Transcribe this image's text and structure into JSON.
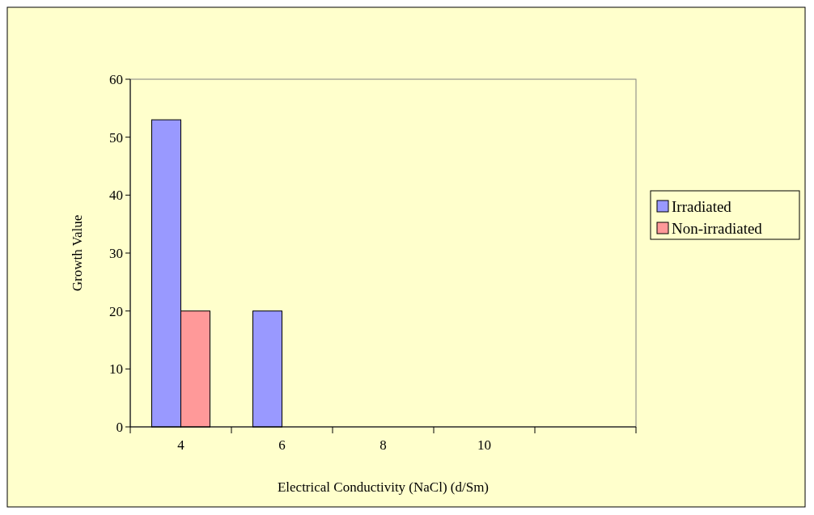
{
  "chart_data": {
    "type": "bar",
    "xlabel": "Electrical Conductivity (NaCl) (d/Sm)",
    "ylabel": "Growth Value",
    "categories": [
      "4",
      "6",
      "8",
      "10",
      null
    ],
    "series": [
      {
        "name": "Irradiated",
        "color": "#9999ff",
        "values": [
          53,
          20,
          0,
          0,
          null
        ]
      },
      {
        "name": "Non-irradiated",
        "color": "#ff9999",
        "values": [
          20,
          0,
          0,
          0,
          null
        ]
      }
    ],
    "ylim": [
      0,
      60
    ],
    "yticks": [
      0,
      10,
      20,
      30,
      40,
      50,
      60
    ],
    "grid": false,
    "legend": "right"
  }
}
